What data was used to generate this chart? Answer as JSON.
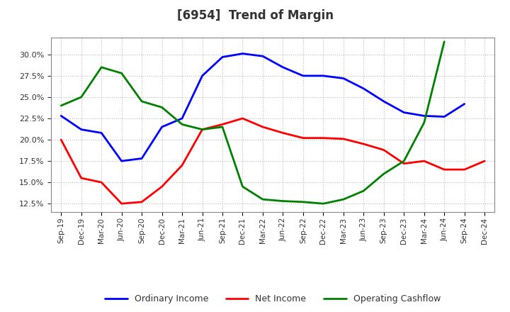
{
  "title": "[6954]  Trend of Margin",
  "x_labels": [
    "Sep-19",
    "Dec-19",
    "Mar-20",
    "Jun-20",
    "Sep-20",
    "Dec-20",
    "Mar-21",
    "Jun-21",
    "Sep-21",
    "Dec-21",
    "Mar-22",
    "Jun-22",
    "Sep-22",
    "Dec-22",
    "Mar-23",
    "Jun-23",
    "Sep-23",
    "Dec-23",
    "Mar-24",
    "Jun-24",
    "Sep-24",
    "Dec-24"
  ],
  "ordinary_income": [
    22.8,
    21.2,
    20.8,
    17.5,
    17.8,
    21.5,
    22.5,
    27.5,
    29.7,
    30.1,
    29.8,
    28.5,
    27.5,
    27.5,
    27.2,
    26.0,
    24.5,
    23.2,
    22.8,
    22.7,
    24.2,
    null
  ],
  "net_income": [
    20.0,
    15.5,
    15.0,
    12.5,
    12.7,
    14.5,
    17.0,
    21.2,
    21.8,
    22.5,
    21.5,
    20.8,
    20.2,
    20.2,
    20.1,
    19.5,
    18.8,
    17.2,
    17.5,
    16.5,
    16.5,
    17.5
  ],
  "operating_cashflow": [
    24.0,
    25.0,
    28.5,
    27.8,
    24.5,
    23.8,
    21.8,
    21.2,
    21.5,
    14.5,
    13.0,
    12.8,
    12.7,
    12.5,
    13.0,
    14.0,
    16.0,
    17.5,
    22.0,
    31.5,
    null,
    null
  ],
  "ylim": [
    11.5,
    32.0
  ],
  "yticks": [
    12.5,
    15.0,
    17.5,
    20.0,
    22.5,
    25.0,
    27.5,
    30.0
  ],
  "line_colors": {
    "ordinary_income": "#0000FF",
    "net_income": "#FF0000",
    "operating_cashflow": "#008000"
  },
  "background_color": "#FFFFFF",
  "grid_color": "#BBBBBB",
  "legend_labels": [
    "Ordinary Income",
    "Net Income",
    "Operating Cashflow"
  ]
}
